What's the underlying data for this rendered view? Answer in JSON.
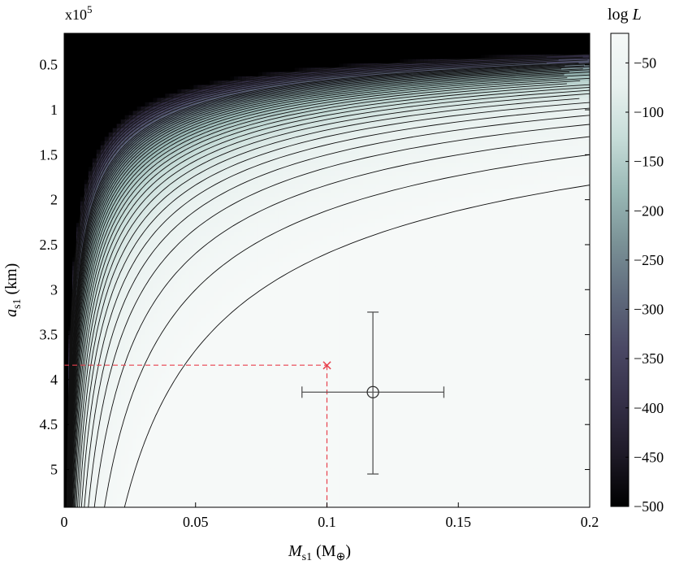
{
  "chart_data": {
    "type": "heatmap",
    "description_of_marks": "Log-likelihood contour map with a colorbar; a red cross marks a true value with dashed guide lines; a black circle with error bars marks a fitted estimate.",
    "x": {
      "label_main": "M",
      "label_sub": "s1",
      "label_unit_open": " (M",
      "label_unit_sub": "⊕",
      "label_unit_close": ")",
      "range": [
        0,
        0.2
      ],
      "ticks": [
        0,
        0.05,
        0.1,
        0.15,
        0.2
      ],
      "tick_labels": [
        "0",
        "0.05",
        "0.1",
        "0.15",
        "0.2"
      ]
    },
    "y": {
      "label_main": "a",
      "label_sub": "s1",
      "label_unit": " (km)",
      "range": [
        15000,
        542000
      ],
      "inverted": true,
      "multiplier": "x10",
      "multiplier_exp": "5",
      "ticks": [
        0.5,
        1,
        1.5,
        2,
        2.5,
        3,
        3.5,
        4,
        4.5,
        5
      ],
      "tick_labels": [
        "0.5",
        "1",
        "1.5",
        "2",
        "2.5",
        "3",
        "3.5",
        "4",
        "4.5",
        "5"
      ]
    },
    "colorbar": {
      "label_main": "log ",
      "label_var": "L",
      "range": [
        -500,
        -20
      ],
      "ticks": [
        -50,
        -100,
        -150,
        -200,
        -250,
        -300,
        -350,
        -400,
        -450,
        -500
      ],
      "tick_labels": [
        "−50",
        "−100",
        "−150",
        "−200",
        "−250",
        "−300",
        "−350",
        "−400",
        "−450",
        "−500"
      ],
      "colors": [
        "#000000",
        "#1e1a27",
        "#353048",
        "#4a4864",
        "#5f6a7c",
        "#7a9196",
        "#9ab9b6",
        "#c6dcd8",
        "#e8f1ef",
        "#f6f9f8"
      ]
    },
    "contour_levels": [
      -20,
      -30,
      -40,
      -50,
      -60,
      -70,
      -80,
      -90,
      -100,
      -110,
      -120,
      -130,
      -140,
      -150,
      -160,
      -170,
      -180,
      -190,
      -200,
      -210,
      -220,
      -230,
      -240,
      -250,
      -260,
      -270,
      -280,
      -290,
      -300,
      -320,
      -340,
      -360,
      -380,
      -400,
      -430,
      -460
    ],
    "true_value": {
      "x": 0.1,
      "y": 384000,
      "marker": "×",
      "color": "#e8414d"
    },
    "estimate": {
      "x": 0.1175,
      "y": 414000,
      "x_err_low": 0.0905,
      "x_err_high": 0.1445,
      "y_err_low": 325000,
      "y_err_high": 505000,
      "color": "#555555"
    },
    "grid": false
  }
}
